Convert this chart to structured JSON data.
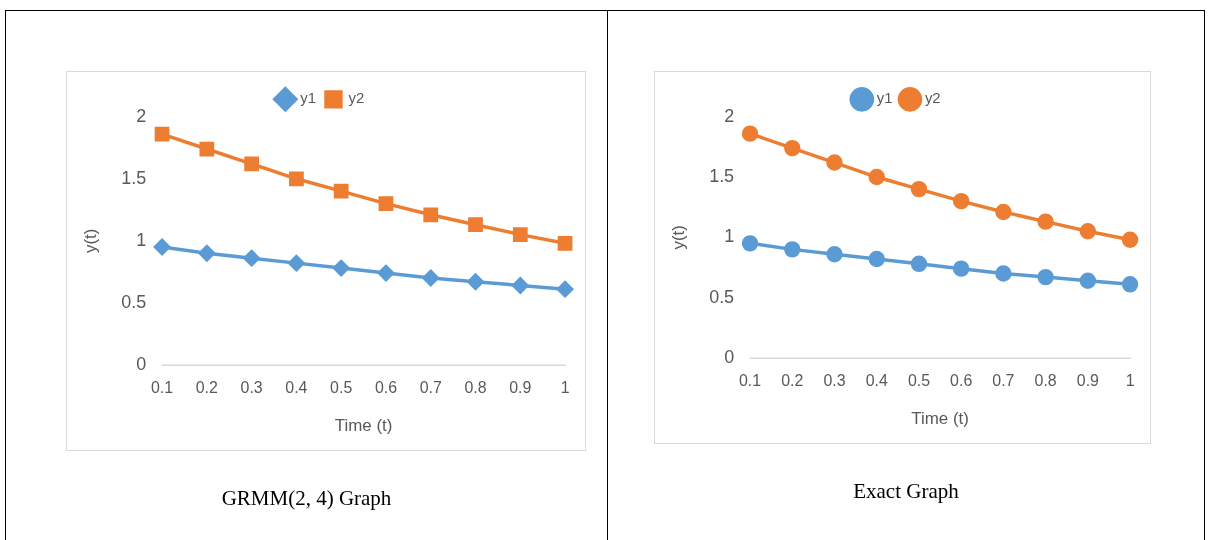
{
  "chart_data": [
    {
      "type": "line",
      "categories": [
        "0.1",
        "0.2",
        "0.3",
        "0.4",
        "0.5",
        "0.6",
        "0.7",
        "0.8",
        "0.9",
        "1"
      ],
      "xlabel": "Time (t)",
      "ylabel": "y(t)",
      "ylim": [
        0,
        2
      ],
      "yticks": [
        0,
        0.5,
        1,
        1.5,
        2
      ],
      "grid": false,
      "legend": "top",
      "annotations": [
        "GRMM(2, 4) Graph"
      ],
      "series": [
        {
          "name": "y1",
          "color": "#5b9bd5",
          "marker": "diamond",
          "values": [
            0.95,
            0.9,
            0.86,
            0.82,
            0.78,
            0.74,
            0.7,
            0.67,
            0.64,
            0.61
          ]
        },
        {
          "name": "y2",
          "color": "#ed7d31",
          "marker": "square",
          "values": [
            1.86,
            1.74,
            1.62,
            1.5,
            1.4,
            1.3,
            1.21,
            1.13,
            1.05,
            0.98
          ]
        }
      ]
    },
    {
      "type": "line",
      "categories": [
        "0.1",
        "0.2",
        "0.3",
        "0.4",
        "0.5",
        "0.6",
        "0.7",
        "0.8",
        "0.9",
        "1"
      ],
      "xlabel": "Time (t)",
      "ylabel": "y(t)",
      "ylim": [
        0,
        2
      ],
      "yticks": [
        0,
        0.5,
        1,
        1.5,
        2
      ],
      "grid": false,
      "legend": "top",
      "marker": "circle",
      "annotations": [
        "Exact Graph"
      ],
      "series": [
        {
          "name": "y1",
          "color": "#5b9bd5",
          "values": [
            0.95,
            0.9,
            0.86,
            0.82,
            0.78,
            0.74,
            0.7,
            0.67,
            0.64,
            0.61
          ]
        },
        {
          "name": "y2",
          "color": "#ed7d31",
          "values": [
            1.86,
            1.74,
            1.62,
            1.5,
            1.4,
            1.3,
            1.21,
            1.13,
            1.05,
            0.98
          ]
        }
      ]
    }
  ]
}
